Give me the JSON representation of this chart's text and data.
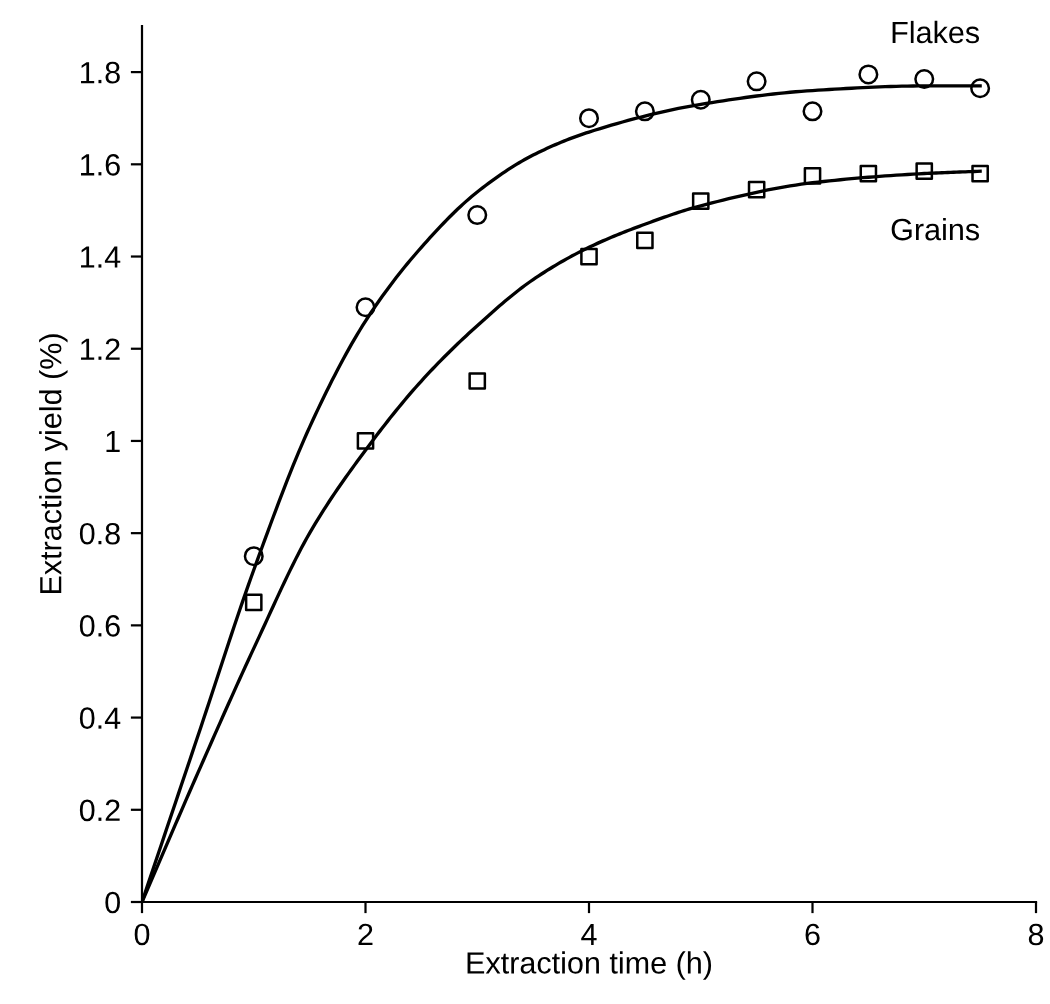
{
  "chart_data": {
    "type": "scatter",
    "xlabel": "Extraction time (h)",
    "ylabel": "Extraction yield (%)",
    "xlim": [
      0,
      8
    ],
    "ylim": [
      0,
      1.9
    ],
    "xticks": [
      0,
      2,
      4,
      6,
      8
    ],
    "yticks": [
      0,
      0.2,
      0.4,
      0.6,
      0.8,
      1,
      1.2,
      1.4,
      1.6,
      1.8
    ],
    "grid": false,
    "legend": false,
    "series": [
      {
        "name": "Flakes",
        "marker": "circle",
        "color": "#000000",
        "x": [
          1,
          2,
          3,
          4,
          4.5,
          5,
          5.5,
          6,
          6.5,
          7,
          7.5
        ],
        "values": [
          0.75,
          1.29,
          1.49,
          1.7,
          1.715,
          1.74,
          1.78,
          1.715,
          1.795,
          1.785,
          1.765
        ]
      },
      {
        "name": "Grains",
        "marker": "square",
        "color": "#000000",
        "x": [
          1,
          2,
          3,
          4,
          4.5,
          5,
          5.5,
          6,
          6.5,
          7,
          7.5
        ],
        "values": [
          0.65,
          1.0,
          1.13,
          1.4,
          1.435,
          1.52,
          1.545,
          1.575,
          1.58,
          1.585,
          1.58
        ]
      },
      {
        "type": "line",
        "color": "#000000",
        "x": [
          0,
          0.5,
          1,
          1.5,
          2,
          2.5,
          3,
          3.5,
          4,
          5,
          6,
          7,
          7.5
        ],
        "values": [
          0,
          0.36,
          0.72,
          1.03,
          1.26,
          1.42,
          1.54,
          1.62,
          1.67,
          1.73,
          1.76,
          1.77,
          1.77
        ]
      },
      {
        "type": "line",
        "color": "#000000",
        "x": [
          0,
          0.5,
          1,
          1.5,
          2,
          2.5,
          3,
          3.5,
          4,
          4.5,
          5,
          6,
          7,
          7.5
        ],
        "values": [
          0,
          0.28,
          0.55,
          0.8,
          0.98,
          1.13,
          1.25,
          1.35,
          1.42,
          1.47,
          1.51,
          1.56,
          1.58,
          1.585
        ]
      }
    ]
  }
}
